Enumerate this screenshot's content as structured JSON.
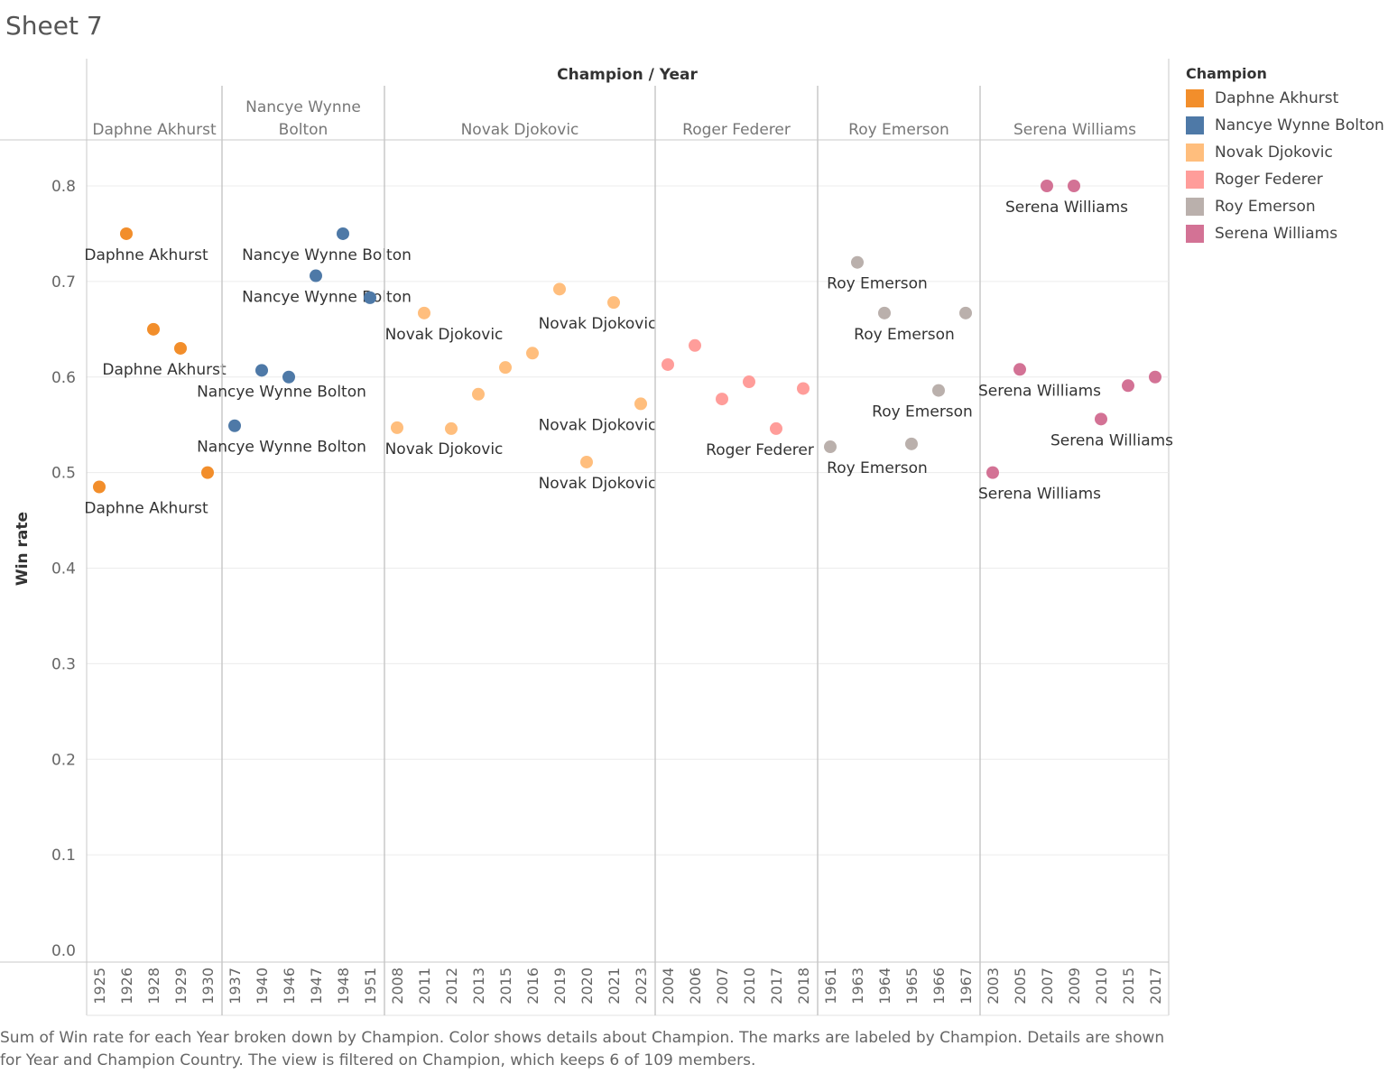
{
  "sheet_title": "Sheet 7",
  "caption": "Sum of Win rate for each Year broken down by Champion.  Color shows details about Champion.  The marks are labeled by Champion.  Details are shown for Year and Champion Country. The view is filtered on Champion, which keeps 6 of 109 members.",
  "legend": {
    "title": "Champion",
    "items": [
      {
        "label": "Daphne Akhurst",
        "color": "#F28E2B"
      },
      {
        "label": "Nancye Wynne Bolton",
        "color": "#4E79A7"
      },
      {
        "label": "Novak Djokovic",
        "color": "#FFBE7D"
      },
      {
        "label": "Roger Federer",
        "color": "#FF9D9A"
      },
      {
        "label": "Roy Emerson",
        "color": "#BAB0AC"
      },
      {
        "label": "Serena Williams",
        "color": "#D37295"
      }
    ]
  },
  "chart_data": {
    "type": "scatter",
    "column_header": "Champion / Year",
    "ylabel": "Win rate",
    "ylim": [
      0,
      0.85
    ],
    "yticks": [
      "0.0",
      "0.1",
      "0.2",
      "0.3",
      "0.4",
      "0.5",
      "0.6",
      "0.7",
      "0.8"
    ],
    "grid": true,
    "legend_position": "right",
    "panels": [
      {
        "champion": "Daphne Akhurst",
        "header": "Daphne Akhurst",
        "color": "#F28E2B",
        "years": [
          "1925",
          "1926",
          "1928",
          "1929",
          "1930"
        ],
        "values": [
          0.485,
          0.75,
          0.65,
          0.63,
          0.5
        ],
        "labeled": [
          true,
          true,
          false,
          true,
          false
        ]
      },
      {
        "champion": "Nancye Wynne Bolton",
        "header": "Nancye Wynne Bolton",
        "color": "#4E79A7",
        "years": [
          "1937",
          "1940",
          "1946",
          "1947",
          "1948",
          "1951"
        ],
        "values": [
          0.549,
          0.607,
          0.6,
          0.706,
          0.75,
          0.683
        ],
        "labeled": [
          true,
          true,
          false,
          true,
          true,
          false
        ]
      },
      {
        "champion": "Novak Djokovic",
        "header": "Novak Djokovic",
        "color": "#FFBE7D",
        "years": [
          "2008",
          "2011",
          "2012",
          "2013",
          "2015",
          "2016",
          "2019",
          "2020",
          "2021",
          "2023"
        ],
        "values": [
          0.547,
          0.667,
          0.546,
          0.582,
          0.61,
          0.625,
          0.692,
          0.511,
          0.678,
          0.572
        ],
        "labeled": [
          true,
          true,
          false,
          false,
          false,
          false,
          false,
          true,
          true,
          true
        ]
      },
      {
        "champion": "Roger Federer",
        "header": "Roger Federer",
        "color": "#FF9D9A",
        "years": [
          "2004",
          "2006",
          "2007",
          "2010",
          "2017",
          "2018"
        ],
        "values": [
          0.613,
          0.633,
          0.577,
          0.595,
          0.546,
          0.588
        ],
        "labeled": [
          false,
          false,
          false,
          false,
          true,
          false
        ]
      },
      {
        "champion": "Roy Emerson",
        "header": "Roy Emerson",
        "color": "#BAB0AC",
        "years": [
          "1961",
          "1963",
          "1964",
          "1965",
          "1966",
          "1967"
        ],
        "values": [
          0.527,
          0.72,
          0.667,
          0.53,
          0.586,
          0.667
        ],
        "labeled": [
          true,
          true,
          true,
          false,
          true,
          false
        ]
      },
      {
        "champion": "Serena Williams",
        "header": "Serena Williams",
        "color": "#D37295",
        "years": [
          "2003",
          "2005",
          "2007",
          "2009",
          "2010",
          "2015",
          "2017"
        ],
        "values": [
          0.5,
          0.608,
          0.8,
          0.8,
          0.556,
          0.591,
          0.6
        ],
        "labeled": [
          true,
          true,
          true,
          false,
          true,
          false,
          false
        ]
      }
    ]
  }
}
